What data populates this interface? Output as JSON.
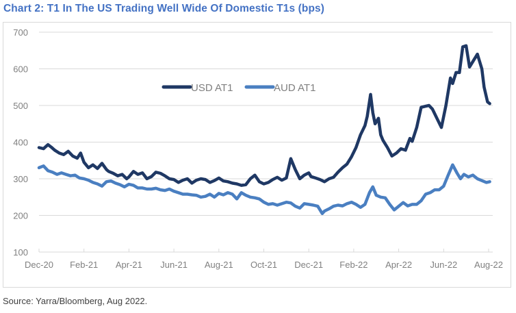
{
  "title": "Chart 2: T1 In The US Trading Well Wide Of Domestic T1s (bps)",
  "source": "Source: Yarra/Bloomberg, Aug 2022.",
  "colors": {
    "title": "#4472c4",
    "usd": "#1f3864",
    "aud": "#4a7fc1",
    "grid": "#d9d9d9",
    "axis_text": "#7f7f7f"
  },
  "chart_data": {
    "type": "line",
    "title": "Chart 2: T1 In The US Trading Well Wide Of Domestic T1s (bps)",
    "xlabel": "",
    "ylabel": "bps",
    "x_unit": "months since Dec-20",
    "xlim": [
      0,
      20
    ],
    "ylim": [
      100,
      700
    ],
    "yticks": [
      100,
      200,
      300,
      400,
      500,
      600,
      700
    ],
    "xtick_labels": [
      "Dec-20",
      "Feb-21",
      "Apr-21",
      "Jun-21",
      "Aug-21",
      "Oct-21",
      "Dec-21",
      "Feb-22",
      "Apr-22",
      "Jun-22",
      "Aug-22"
    ],
    "grid": true,
    "legend_position": "center-top",
    "series": [
      {
        "name": "USD AT1",
        "x": [
          0,
          0.2,
          0.4,
          0.55,
          0.7,
          0.9,
          1.1,
          1.3,
          1.5,
          1.7,
          1.85,
          2.0,
          2.2,
          2.4,
          2.6,
          2.8,
          3.0,
          3.1,
          3.3,
          3.5,
          3.7,
          3.9,
          4.0,
          4.2,
          4.4,
          4.6,
          4.8,
          5.0,
          5.2,
          5.4,
          5.6,
          5.8,
          6.0,
          6.2,
          6.4,
          6.6,
          6.8,
          7.0,
          7.2,
          7.4,
          7.6,
          7.8,
          8.0,
          8.2,
          8.4,
          8.6,
          8.8,
          9.0,
          9.2,
          9.4,
          9.6,
          9.8,
          10.0,
          10.2,
          10.4,
          10.6,
          10.8,
          11.0,
          11.2,
          11.4,
          11.6,
          11.8,
          12.0,
          12.1,
          12.3,
          12.5,
          12.7,
          12.9,
          13.1,
          13.3,
          13.5,
          13.7,
          13.9,
          14.1,
          14.3,
          14.5,
          14.6,
          14.75,
          14.85,
          14.95,
          15.1,
          15.2,
          15.3,
          15.5,
          15.7,
          15.9,
          16.1,
          16.3,
          16.5,
          16.6,
          16.8,
          17.0,
          17.2,
          17.35,
          17.5,
          17.7,
          17.9,
          18.1,
          18.3,
          18.4,
          18.55,
          18.7,
          18.85,
          19.0,
          19.15,
          19.3,
          19.5,
          19.7,
          19.8,
          19.95,
          20.05
        ],
        "values": [
          385,
          382,
          393,
          386,
          378,
          370,
          366,
          375,
          362,
          356,
          370,
          345,
          330,
          338,
          328,
          342,
          325,
          320,
          315,
          308,
          312,
          300,
          305,
          320,
          312,
          316,
          300,
          306,
          318,
          315,
          308,
          300,
          298,
          290,
          296,
          300,
          288,
          296,
          300,
          298,
          290,
          295,
          302,
          294,
          292,
          288,
          286,
          282,
          284,
          300,
          310,
          292,
          286,
          290,
          298,
          304,
          296,
          302,
          355,
          325,
          300,
          310,
          316,
          306,
          302,
          298,
          292,
          300,
          304,
          318,
          330,
          340,
          360,
          385,
          420,
          445,
          470,
          530,
          480,
          450,
          465,
          420,
          405,
          385,
          362,
          370,
          382,
          378,
          410,
          402,
          440,
          495,
          498,
          500,
          490,
          465,
          440,
          500,
          575,
          560,
          590,
          590,
          660,
          663,
          605,
          620,
          640,
          600,
          550,
          510,
          505
        ]
      },
      {
        "name": "AUD AT1",
        "x": [
          0,
          0.2,
          0.4,
          0.6,
          0.8,
          1.0,
          1.2,
          1.4,
          1.6,
          1.8,
          2.0,
          2.2,
          2.4,
          2.6,
          2.8,
          3.0,
          3.2,
          3.4,
          3.6,
          3.8,
          4.0,
          4.2,
          4.4,
          4.6,
          4.8,
          5.0,
          5.2,
          5.4,
          5.6,
          5.8,
          6.0,
          6.2,
          6.4,
          6.6,
          6.8,
          7.0,
          7.2,
          7.4,
          7.6,
          7.8,
          8.0,
          8.2,
          8.4,
          8.6,
          8.8,
          9.0,
          9.2,
          9.4,
          9.6,
          9.8,
          10.0,
          10.2,
          10.4,
          10.6,
          10.8,
          11.0,
          11.2,
          11.4,
          11.6,
          11.8,
          12.0,
          12.2,
          12.4,
          12.6,
          12.7,
          12.9,
          13.1,
          13.3,
          13.5,
          13.7,
          13.9,
          14.1,
          14.3,
          14.5,
          14.7,
          14.85,
          15.0,
          15.2,
          15.4,
          15.6,
          15.8,
          16.0,
          16.2,
          16.4,
          16.6,
          16.8,
          17.0,
          17.2,
          17.4,
          17.6,
          17.8,
          18.0,
          18.2,
          18.4,
          18.6,
          18.75,
          18.9,
          19.1,
          19.3,
          19.5,
          19.7,
          19.9,
          20.05
        ],
        "values": [
          330,
          335,
          322,
          318,
          312,
          316,
          312,
          308,
          310,
          302,
          300,
          296,
          290,
          286,
          280,
          292,
          294,
          288,
          284,
          278,
          285,
          282,
          275,
          275,
          272,
          272,
          274,
          270,
          268,
          272,
          266,
          262,
          258,
          258,
          256,
          255,
          250,
          252,
          258,
          250,
          260,
          256,
          262,
          258,
          245,
          262,
          255,
          250,
          248,
          245,
          236,
          230,
          232,
          228,
          232,
          236,
          234,
          225,
          220,
          232,
          230,
          228,
          225,
          205,
          212,
          218,
          225,
          228,
          226,
          232,
          236,
          230,
          222,
          230,
          262,
          278,
          255,
          250,
          248,
          230,
          215,
          225,
          235,
          226,
          230,
          230,
          240,
          258,
          262,
          270,
          270,
          280,
          310,
          338,
          315,
          300,
          312,
          305,
          310,
          300,
          295,
          290,
          292
        ]
      }
    ]
  }
}
